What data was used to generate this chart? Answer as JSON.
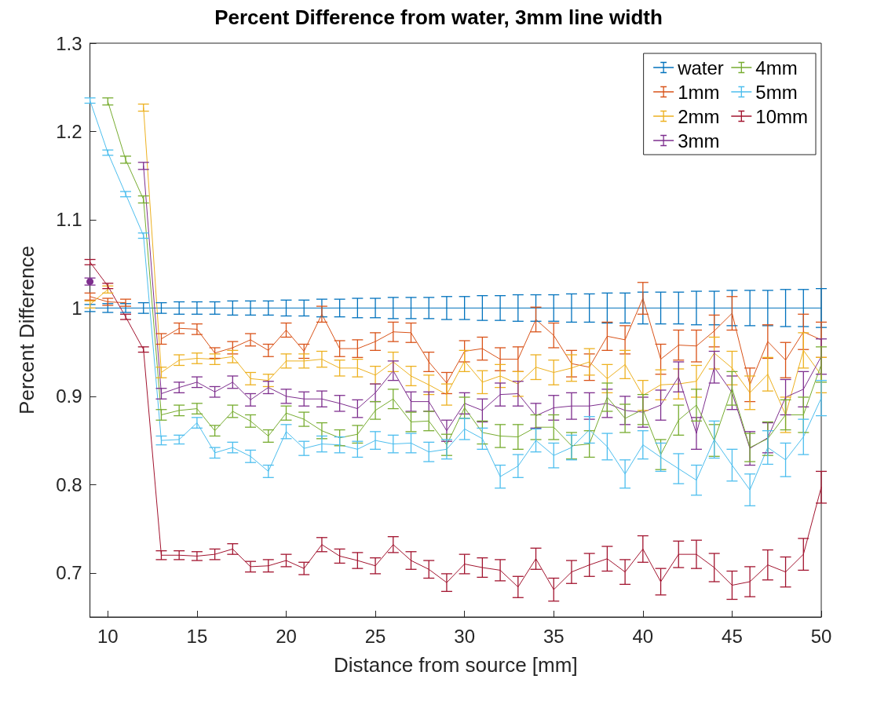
{
  "chart_data": {
    "type": "line",
    "title": "Percent Difference from water, 3mm line width",
    "xlabel": "Distance from source [mm]",
    "ylabel": "Percent Difference",
    "x": [
      9,
      10,
      11,
      12,
      13,
      14,
      15,
      16,
      17,
      18,
      19,
      20,
      21,
      22,
      23,
      24,
      25,
      26,
      27,
      28,
      29,
      30,
      31,
      32,
      33,
      34,
      35,
      36,
      37,
      38,
      39,
      40,
      41,
      42,
      43,
      44,
      45,
      46,
      47,
      48,
      49,
      50
    ],
    "xlim": [
      9,
      50
    ],
    "xticks": [
      10,
      15,
      20,
      25,
      30,
      35,
      40,
      45,
      50
    ],
    "ylim": [
      0.65,
      1.3
    ],
    "yticks": [
      0.7,
      0.8,
      0.9,
      1,
      1.1,
      1.2,
      1.3
    ],
    "grid": false,
    "legend": "top right",
    "marker": "none",
    "line_style": "solid",
    "series": [
      {
        "name": "water",
        "color": "#0072bd",
        "values": [
          1,
          1,
          1,
          1,
          1,
          1,
          1,
          1,
          1,
          1,
          1,
          1,
          1,
          1,
          1,
          1,
          1,
          1,
          1,
          1,
          1,
          1,
          1,
          1,
          1,
          1,
          1,
          1,
          1,
          1,
          1,
          1,
          1,
          1,
          1,
          1,
          1,
          1,
          1,
          1,
          1,
          1
        ],
        "errors": [
          0.004,
          0.005,
          0.005,
          0.006,
          0.006,
          0.007,
          0.007,
          0.007,
          0.008,
          0.008,
          0.008,
          0.009,
          0.009,
          0.01,
          0.01,
          0.011,
          0.011,
          0.012,
          0.012,
          0.012,
          0.013,
          0.013,
          0.014,
          0.014,
          0.015,
          0.015,
          0.015,
          0.016,
          0.016,
          0.017,
          0.017,
          0.018,
          0.018,
          0.018,
          0.019,
          0.019,
          0.02,
          0.02,
          0.02,
          0.021,
          0.021,
          0.022
        ]
      },
      {
        "name": "1mm",
        "color": "#d95319",
        "values": [
          1.013,
          1.007,
          1.006,
          null,
          0.965,
          0.977,
          0.976,
          0.949,
          0.955,
          0.964,
          0.952,
          0.975,
          0.951,
          0.993,
          0.954,
          0.954,
          0.962,
          0.973,
          0.972,
          0.939,
          0.915,
          0.951,
          0.954,
          0.942,
          0.942,
          0.987,
          0.969,
          0.937,
          0.933,
          0.968,
          0.964,
          1.011,
          0.942,
          0.958,
          0.957,
          0.974,
          0.994,
          0.913,
          0.962,
          0.941,
          0.973,
          0.964
        ],
        "errors": [
          0.004,
          0.004,
          0.004,
          null,
          0.006,
          0.006,
          0.006,
          0.006,
          0.007,
          0.007,
          0.007,
          0.008,
          0.008,
          0.009,
          0.009,
          0.01,
          0.01,
          0.011,
          0.011,
          0.011,
          0.012,
          0.012,
          0.013,
          0.013,
          0.014,
          0.014,
          0.014,
          0.015,
          0.015,
          0.016,
          0.016,
          0.018,
          0.017,
          0.017,
          0.018,
          0.018,
          0.019,
          0.019,
          0.019,
          0.02,
          0.02,
          0.02
        ]
      },
      {
        "name": "2mm",
        "color": "#edb120",
        "values": [
          1.004,
          1.021,
          null,
          1.227,
          0.927,
          0.941,
          0.943,
          0.942,
          0.945,
          0.92,
          0.918,
          0.94,
          0.94,
          0.942,
          0.932,
          0.932,
          0.924,
          0.939,
          0.923,
          0.913,
          0.902,
          0.94,
          0.916,
          0.923,
          0.914,
          0.933,
          0.927,
          0.932,
          0.939,
          0.92,
          0.936,
          0.901,
          0.913,
          0.914,
          0.917,
          0.949,
          0.932,
          0.904,
          0.925,
          0.879,
          0.952,
          0.924
        ],
        "errors": [
          0.004,
          0.004,
          null,
          0.004,
          0.006,
          0.006,
          0.006,
          0.006,
          0.007,
          0.007,
          0.007,
          0.008,
          0.008,
          0.009,
          0.009,
          0.01,
          0.01,
          0.011,
          0.011,
          0.011,
          0.012,
          0.012,
          0.013,
          0.013,
          0.014,
          0.014,
          0.014,
          0.015,
          0.015,
          0.016,
          0.016,
          0.017,
          0.017,
          0.017,
          0.018,
          0.018,
          0.019,
          0.019,
          0.019,
          0.02,
          0.02,
          0.02
        ]
      },
      {
        "name": "3mm",
        "color": "#7e2f8e",
        "values": [
          1.03,
          null,
          null,
          1.161,
          0.903,
          0.91,
          0.916,
          0.905,
          0.916,
          0.896,
          0.91,
          0.9,
          0.897,
          0.897,
          0.892,
          0.886,
          0.904,
          0.929,
          0.894,
          0.894,
          0.861,
          0.892,
          0.884,
          0.902,
          0.903,
          0.878,
          0.887,
          0.889,
          0.889,
          0.892,
          0.884,
          0.882,
          0.89,
          0.922,
          0.858,
          0.933,
          0.904,
          0.841,
          0.853,
          0.899,
          0.908,
          0.945
        ],
        "errors": [
          0.004,
          null,
          null,
          0.004,
          0.006,
          0.006,
          0.006,
          0.006,
          0.007,
          0.007,
          0.007,
          0.008,
          0.008,
          0.009,
          0.009,
          0.01,
          0.01,
          0.011,
          0.011,
          0.011,
          0.012,
          0.012,
          0.013,
          0.013,
          0.014,
          0.014,
          0.014,
          0.015,
          0.015,
          0.016,
          0.016,
          0.017,
          0.017,
          0.017,
          0.018,
          0.018,
          0.019,
          0.019,
          0.017,
          0.02,
          0.02,
          0.02
        ]
      },
      {
        "name": "4mm",
        "color": "#77ac30",
        "values": [
          null,
          1.234,
          1.168,
          1.123,
          0.879,
          0.884,
          0.886,
          0.861,
          0.883,
          0.872,
          0.855,
          0.881,
          0.874,
          0.861,
          0.853,
          0.857,
          0.884,
          0.897,
          0.871,
          0.872,
          0.845,
          0.887,
          0.859,
          0.855,
          0.854,
          0.865,
          0.865,
          0.844,
          0.846,
          0.899,
          0.875,
          0.885,
          0.834,
          0.873,
          0.89,
          0.85,
          0.909,
          0.842,
          0.852,
          0.879,
          0.879,
          0.936
        ],
        "errors": [
          null,
          0.004,
          0.004,
          0.004,
          0.006,
          0.006,
          0.006,
          0.006,
          0.007,
          0.007,
          0.007,
          0.008,
          0.008,
          0.009,
          0.009,
          0.01,
          0.01,
          0.011,
          0.011,
          0.011,
          0.012,
          0.012,
          0.013,
          0.013,
          0.014,
          0.014,
          0.014,
          0.015,
          0.015,
          0.016,
          0.016,
          0.017,
          0.017,
          0.017,
          0.018,
          0.018,
          0.019,
          0.016,
          0.019,
          0.017,
          0.02,
          0.02
        ]
      },
      {
        "name": "5mm",
        "color": "#4dbeee",
        "values": [
          1.235,
          1.176,
          1.129,
          1.082,
          0.85,
          0.851,
          0.87,
          0.836,
          0.842,
          0.832,
          0.815,
          0.86,
          0.841,
          0.846,
          0.845,
          0.84,
          0.85,
          0.846,
          0.847,
          0.837,
          0.84,
          0.863,
          0.852,
          0.809,
          0.821,
          0.85,
          0.833,
          0.842,
          0.862,
          0.843,
          0.812,
          0.845,
          0.831,
          0.818,
          0.805,
          0.851,
          0.822,
          0.794,
          0.842,
          0.828,
          0.854,
          0.898
        ],
        "errors": [
          0.003,
          0.003,
          0.003,
          0.003,
          0.005,
          0.005,
          0.006,
          0.006,
          0.006,
          0.007,
          0.007,
          0.008,
          0.008,
          0.009,
          0.009,
          0.009,
          0.01,
          0.01,
          0.011,
          0.011,
          0.011,
          0.012,
          0.012,
          0.013,
          0.013,
          0.013,
          0.014,
          0.014,
          0.015,
          0.015,
          0.016,
          0.016,
          0.016,
          0.017,
          0.017,
          0.021,
          0.018,
          0.018,
          0.019,
          0.019,
          0.02,
          0.02
        ]
      },
      {
        "name": "10mm",
        "color": "#a2142f",
        "values": [
          1.052,
          1.025,
          0.99,
          0.953,
          0.72,
          0.72,
          0.719,
          0.721,
          0.727,
          0.707,
          0.708,
          0.714,
          0.705,
          0.732,
          0.719,
          0.714,
          0.708,
          0.732,
          0.714,
          0.704,
          0.689,
          0.71,
          0.706,
          0.703,
          0.684,
          0.716,
          0.681,
          0.701,
          0.709,
          0.716,
          0.701,
          0.727,
          0.69,
          0.721,
          0.721,
          0.706,
          0.686,
          0.69,
          0.709,
          0.701,
          0.721,
          0.797
        ],
        "errors": [
          0.003,
          0.003,
          0.003,
          0.003,
          0.005,
          0.005,
          0.005,
          0.006,
          0.006,
          0.006,
          0.007,
          0.007,
          0.007,
          0.008,
          0.008,
          0.009,
          0.009,
          0.009,
          0.01,
          0.01,
          0.01,
          0.011,
          0.011,
          0.012,
          0.012,
          0.012,
          0.013,
          0.013,
          0.013,
          0.014,
          0.014,
          0.015,
          0.015,
          0.015,
          0.016,
          0.016,
          0.016,
          0.017,
          0.017,
          0.017,
          0.018,
          0.018
        ]
      }
    ]
  }
}
